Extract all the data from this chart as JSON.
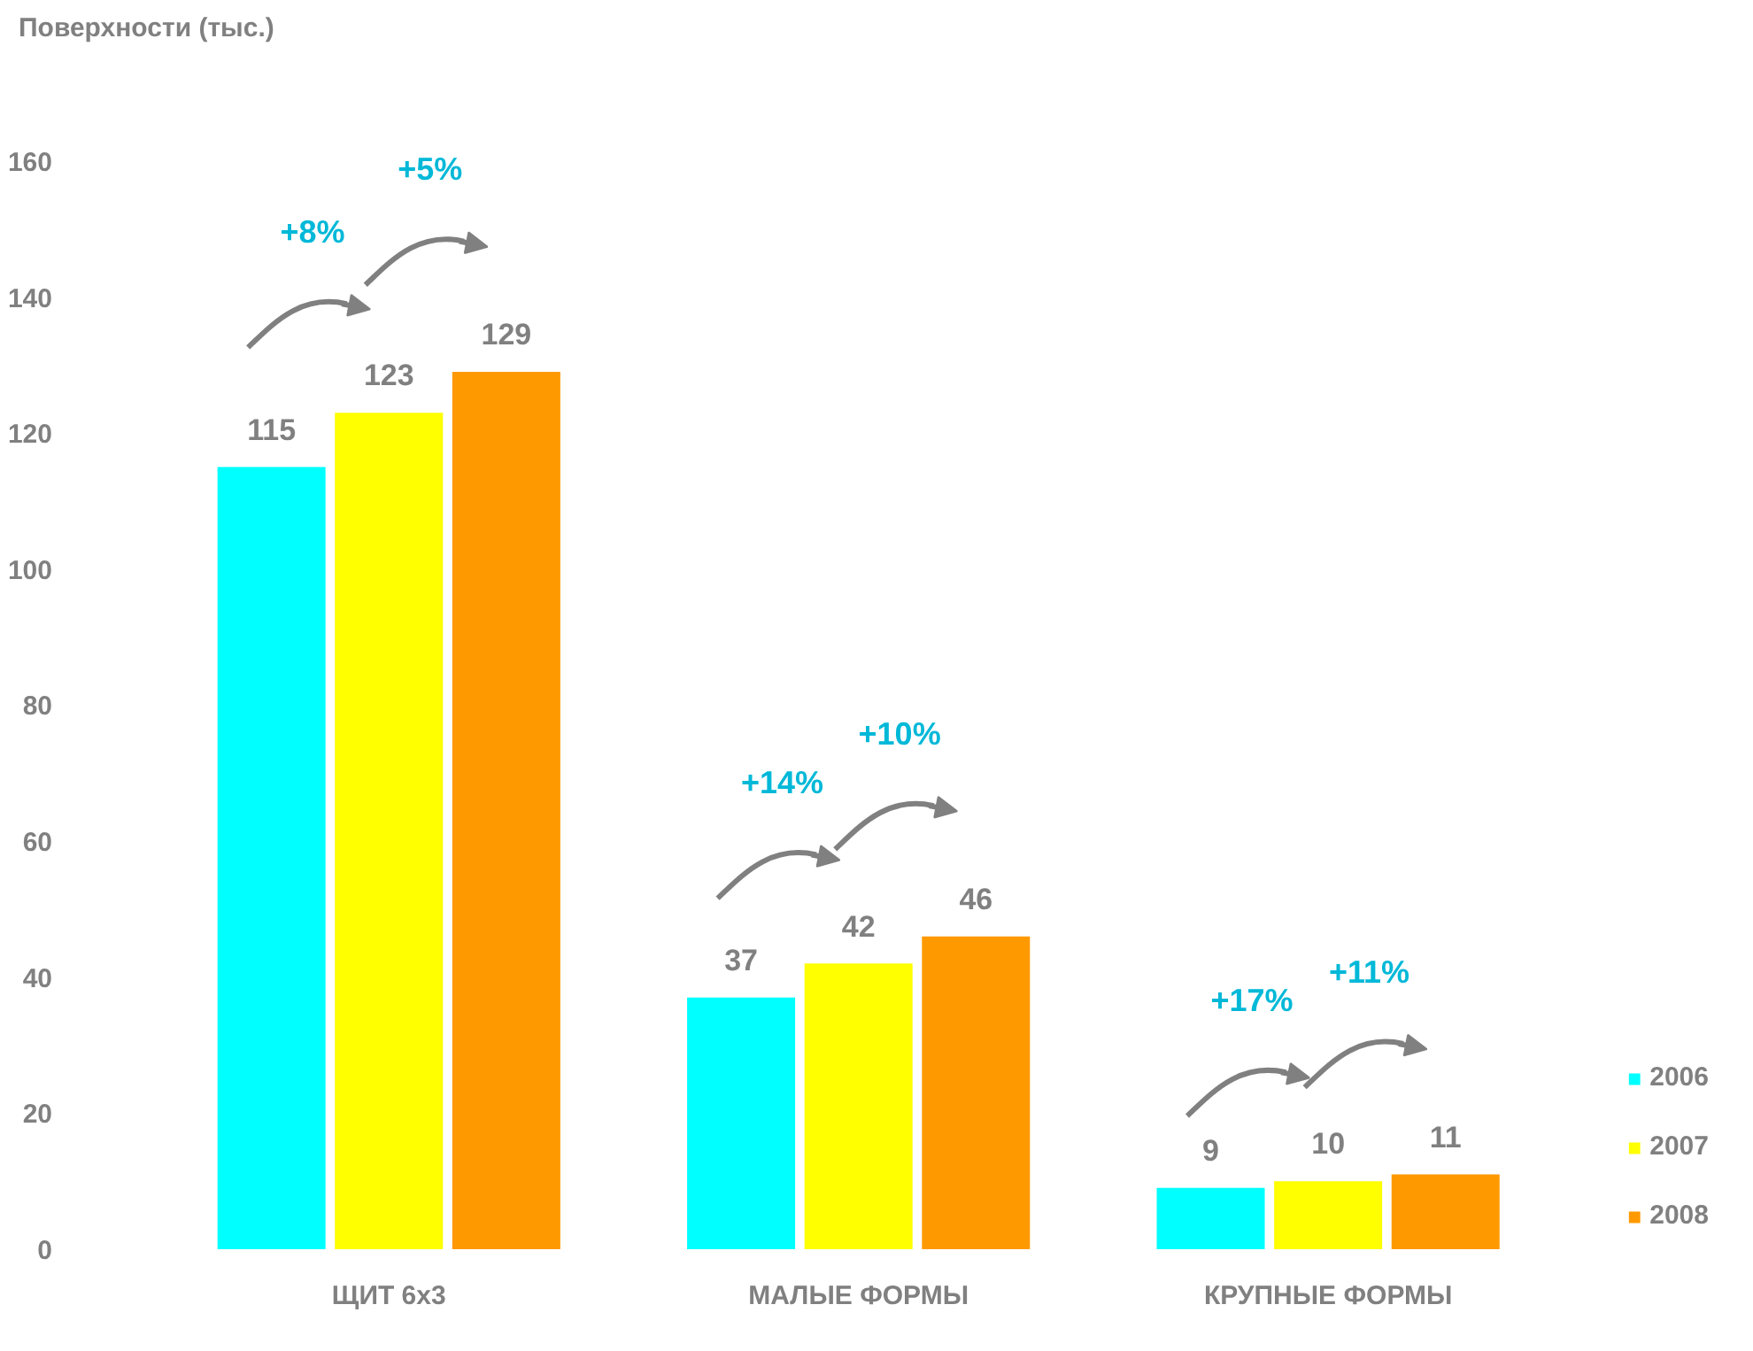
{
  "chart_data": {
    "type": "bar",
    "ylabel": "Поверхности (тыс.)",
    "categories": [
      "ЩИТ 6x3",
      "МАЛЫЕ ФОРМЫ",
      "КРУПНЫЕ ФОРМЫ"
    ],
    "series": [
      {
        "name": "2006",
        "color": "#00ffff",
        "values": [
          115,
          37,
          9
        ]
      },
      {
        "name": "2007",
        "color": "#ffff00",
        "values": [
          123,
          42,
          10
        ]
      },
      {
        "name": "2008",
        "color": "#ff9900",
        "values": [
          129,
          46,
          11
        ]
      }
    ],
    "ylim": [
      0,
      160
    ],
    "yticks": [
      0,
      20,
      40,
      60,
      80,
      100,
      120,
      140,
      160
    ],
    "data_labels": true,
    "grid": false,
    "legend": "bottom right",
    "annotations": [
      "+8%",
      "+5%",
      "+14%",
      "+10%",
      "+17%",
      "+11%"
    ]
  }
}
